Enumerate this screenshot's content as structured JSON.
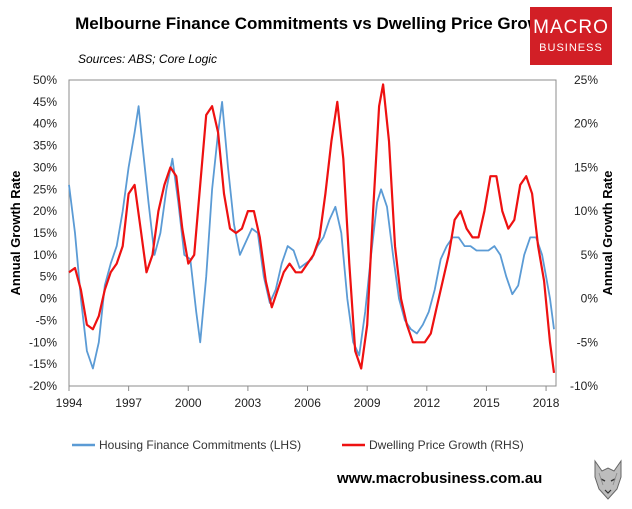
{
  "title": "Melbourne Finance Commitments vs Dwelling Price Growth",
  "subtitle": "Sources: ABS; Core Logic",
  "logo": {
    "line1": "MACRO",
    "line2": "BUSINESS",
    "color": "#d21f26"
  },
  "footer": {
    "url": "www.macrobusiness.com.au"
  },
  "chart_data": {
    "type": "line",
    "ylabel_left": "Annual Growth Rate",
    "ylabel_right": "Annual Growth Rate",
    "ylim_left": [
      -20,
      50
    ],
    "ylim_right": [
      -10,
      25
    ],
    "yticks_left": [
      "50%",
      "45%",
      "40%",
      "35%",
      "30%",
      "25%",
      "20%",
      "15%",
      "10%",
      "5%",
      "0%",
      "-5%",
      "-10%",
      "-15%",
      "-20%"
    ],
    "yticks_right": [
      "25%",
      "20%",
      "15%",
      "10%",
      "5%",
      "0%",
      "-5%",
      "-10%"
    ],
    "xlim": [
      1994,
      2018.5
    ],
    "xticks": [
      1994,
      1997,
      2000,
      2003,
      2006,
      2009,
      2012,
      2015,
      2018
    ],
    "xtick_labels": [
      "1994",
      "1997",
      "2000",
      "2003",
      "2006",
      "2009",
      "2012",
      "2015",
      "2018"
    ],
    "grid": false,
    "legend_position": "bottom",
    "series": [
      {
        "name": "Housing Finance Commitments (LHS)",
        "axis": "left",
        "color": "#5b9bd5",
        "points": [
          [
            1994.0,
            26
          ],
          [
            1994.3,
            15
          ],
          [
            1994.6,
            0
          ],
          [
            1994.9,
            -12
          ],
          [
            1995.2,
            -16
          ],
          [
            1995.5,
            -10
          ],
          [
            1995.8,
            3
          ],
          [
            1996.1,
            8
          ],
          [
            1996.4,
            12
          ],
          [
            1996.7,
            20
          ],
          [
            1997.0,
            30
          ],
          [
            1997.3,
            38
          ],
          [
            1997.5,
            44
          ],
          [
            1997.7,
            35
          ],
          [
            1998.0,
            22
          ],
          [
            1998.3,
            10
          ],
          [
            1998.6,
            15
          ],
          [
            1998.9,
            25
          ],
          [
            1999.2,
            32
          ],
          [
            1999.5,
            22
          ],
          [
            1999.8,
            10
          ],
          [
            2000.1,
            9
          ],
          [
            2000.4,
            -3
          ],
          [
            2000.6,
            -10
          ],
          [
            2000.9,
            5
          ],
          [
            2001.2,
            25
          ],
          [
            2001.5,
            38
          ],
          [
            2001.7,
            45
          ],
          [
            2002.0,
            30
          ],
          [
            2002.3,
            17
          ],
          [
            2002.6,
            10
          ],
          [
            2002.9,
            13
          ],
          [
            2003.2,
            16
          ],
          [
            2003.5,
            15
          ],
          [
            2003.8,
            5
          ],
          [
            2004.1,
            -1
          ],
          [
            2004.4,
            2
          ],
          [
            2004.7,
            8
          ],
          [
            2005.0,
            12
          ],
          [
            2005.3,
            11
          ],
          [
            2005.6,
            7
          ],
          [
            2005.9,
            8
          ],
          [
            2006.2,
            9
          ],
          [
            2006.5,
            12
          ],
          [
            2006.8,
            14
          ],
          [
            2007.1,
            18
          ],
          [
            2007.4,
            21
          ],
          [
            2007.7,
            15
          ],
          [
            2008.0,
            0
          ],
          [
            2008.3,
            -10
          ],
          [
            2008.6,
            -13
          ],
          [
            2008.9,
            -3
          ],
          [
            2009.2,
            10
          ],
          [
            2009.5,
            22
          ],
          [
            2009.7,
            25
          ],
          [
            2010.0,
            21
          ],
          [
            2010.3,
            10
          ],
          [
            2010.6,
            0
          ],
          [
            2010.9,
            -5
          ],
          [
            2011.2,
            -7
          ],
          [
            2011.5,
            -8
          ],
          [
            2011.8,
            -6
          ],
          [
            2012.1,
            -3
          ],
          [
            2012.4,
            2
          ],
          [
            2012.7,
            9
          ],
          [
            2013.0,
            12
          ],
          [
            2013.3,
            14
          ],
          [
            2013.6,
            14
          ],
          [
            2013.9,
            12
          ],
          [
            2014.2,
            12
          ],
          [
            2014.5,
            11
          ],
          [
            2014.8,
            11
          ],
          [
            2015.1,
            11
          ],
          [
            2015.4,
            12
          ],
          [
            2015.7,
            10
          ],
          [
            2016.0,
            5
          ],
          [
            2016.3,
            1
          ],
          [
            2016.6,
            3
          ],
          [
            2016.9,
            10
          ],
          [
            2017.2,
            14
          ],
          [
            2017.5,
            14
          ],
          [
            2017.8,
            10
          ],
          [
            2018.0,
            5
          ],
          [
            2018.2,
            0
          ],
          [
            2018.4,
            -7
          ]
        ]
      },
      {
        "name": "Dwelling Price Growth (RHS)",
        "axis": "right",
        "color": "#ee1111",
        "points": [
          [
            1994.0,
            3
          ],
          [
            1994.3,
            3.5
          ],
          [
            1994.6,
            1
          ],
          [
            1994.9,
            -3
          ],
          [
            1995.2,
            -3.5
          ],
          [
            1995.5,
            -2
          ],
          [
            1995.8,
            1
          ],
          [
            1996.1,
            3
          ],
          [
            1996.4,
            4
          ],
          [
            1996.7,
            6
          ],
          [
            1997.0,
            12
          ],
          [
            1997.3,
            13
          ],
          [
            1997.6,
            8
          ],
          [
            1997.9,
            3
          ],
          [
            1998.2,
            5
          ],
          [
            1998.5,
            10
          ],
          [
            1998.8,
            13
          ],
          [
            1999.1,
            15
          ],
          [
            1999.4,
            14
          ],
          [
            1999.7,
            8
          ],
          [
            2000.0,
            4
          ],
          [
            2000.3,
            5
          ],
          [
            2000.6,
            13
          ],
          [
            2000.9,
            21
          ],
          [
            2001.2,
            22
          ],
          [
            2001.5,
            19
          ],
          [
            2001.8,
            12
          ],
          [
            2002.1,
            8
          ],
          [
            2002.4,
            7.5
          ],
          [
            2002.7,
            8
          ],
          [
            2003.0,
            10
          ],
          [
            2003.3,
            10
          ],
          [
            2003.6,
            7
          ],
          [
            2003.9,
            2
          ],
          [
            2004.2,
            -1
          ],
          [
            2004.5,
            1
          ],
          [
            2004.8,
            3
          ],
          [
            2005.1,
            4
          ],
          [
            2005.4,
            3
          ],
          [
            2005.7,
            3
          ],
          [
            2006.0,
            4
          ],
          [
            2006.3,
            5
          ],
          [
            2006.6,
            7
          ],
          [
            2006.9,
            12
          ],
          [
            2007.2,
            18
          ],
          [
            2007.5,
            22.5
          ],
          [
            2007.8,
            16
          ],
          [
            2008.1,
            4
          ],
          [
            2008.4,
            -6
          ],
          [
            2008.7,
            -8
          ],
          [
            2009.0,
            -3
          ],
          [
            2009.3,
            10
          ],
          [
            2009.6,
            22
          ],
          [
            2009.8,
            24.5
          ],
          [
            2010.1,
            18
          ],
          [
            2010.4,
            6
          ],
          [
            2010.7,
            0
          ],
          [
            2011.0,
            -3
          ],
          [
            2011.3,
            -5
          ],
          [
            2011.6,
            -5
          ],
          [
            2011.9,
            -5
          ],
          [
            2012.2,
            -4
          ],
          [
            2012.5,
            -1
          ],
          [
            2012.8,
            2
          ],
          [
            2013.1,
            5
          ],
          [
            2013.4,
            9
          ],
          [
            2013.7,
            10
          ],
          [
            2014.0,
            8
          ],
          [
            2014.3,
            7
          ],
          [
            2014.6,
            7
          ],
          [
            2014.9,
            10
          ],
          [
            2015.2,
            14
          ],
          [
            2015.5,
            14
          ],
          [
            2015.8,
            10
          ],
          [
            2016.1,
            8
          ],
          [
            2016.4,
            9
          ],
          [
            2016.7,
            13
          ],
          [
            2017.0,
            14
          ],
          [
            2017.3,
            12
          ],
          [
            2017.6,
            6
          ],
          [
            2017.9,
            2
          ],
          [
            2018.2,
            -5
          ],
          [
            2018.4,
            -8.5
          ]
        ]
      }
    ]
  }
}
